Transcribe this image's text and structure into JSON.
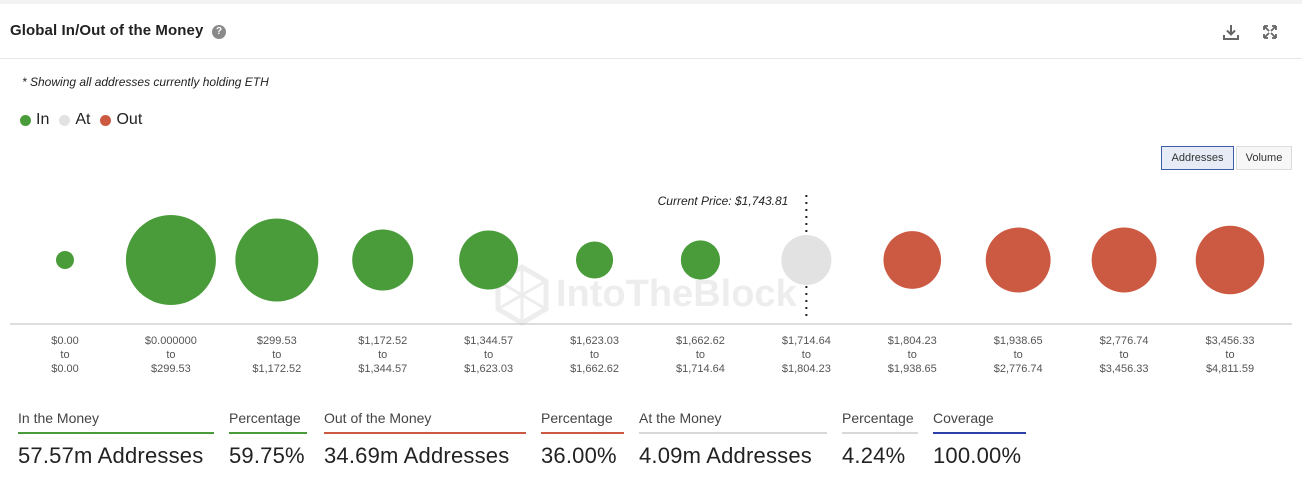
{
  "header": {
    "title": "Global In/Out of the Money",
    "help_glyph": "?",
    "icons": [
      "download-icon",
      "expand-icon"
    ]
  },
  "note": "* Showing all addresses currently holding ETH",
  "legend": [
    {
      "label": "In",
      "color": "#4a9c3a"
    },
    {
      "label": "At",
      "color": "#e2e2e2"
    },
    {
      "label": "Out",
      "color": "#cc5a43"
    }
  ],
  "toggles": {
    "addresses": "Addresses",
    "volume": "Volume"
  },
  "current_price_label": "Current Price: $1,743.81",
  "watermark": "IntoTheBlock",
  "chart_data": {
    "type": "bubble",
    "title": "Global In/Out of the Money",
    "current_price": 1743.81,
    "series": [
      {
        "name": "In",
        "color": "#4a9c3a"
      },
      {
        "name": "At",
        "color": "#e2e2e2"
      },
      {
        "name": "Out",
        "color": "#cc5a43"
      }
    ],
    "buckets": [
      {
        "from": "$0.00",
        "to": "$0.00",
        "status": "In",
        "size": 4
      },
      {
        "from": "$0.000000",
        "to": "$299.53",
        "status": "In",
        "size": 100
      },
      {
        "from": "$299.53",
        "to": "$1,172.52",
        "status": "In",
        "size": 85
      },
      {
        "from": "$1,172.52",
        "to": "$1,344.57",
        "status": "In",
        "size": 46
      },
      {
        "from": "$1,344.57",
        "to": "$1,623.03",
        "status": "In",
        "size": 43
      },
      {
        "from": "$1,623.03",
        "to": "$1,662.62",
        "status": "In",
        "size": 17
      },
      {
        "from": "$1,662.62",
        "to": "$1,714.64",
        "status": "In",
        "size": 19
      },
      {
        "from": "$1,714.64",
        "to": "$1,804.23",
        "status": "At",
        "size": 31
      },
      {
        "from": "$1,804.23",
        "to": "$1,938.65",
        "status": "Out",
        "size": 41
      },
      {
        "from": "$1,938.65",
        "to": "$2,776.74",
        "status": "Out",
        "size": 52
      },
      {
        "from": "$2,776.74",
        "to": "$3,456.33",
        "status": "Out",
        "size": 52
      },
      {
        "from": "$3,456.33",
        "to": "$4,811.59",
        "status": "Out",
        "size": 58
      }
    ],
    "range_connector": "to"
  },
  "stats": [
    {
      "label": "In the Money",
      "value": "57.57m Addresses",
      "color": "#4a9c3a"
    },
    {
      "label": "Percentage",
      "value": "59.75%",
      "color": "#4a9c3a"
    },
    {
      "label": "Out of the Money",
      "value": "34.69m Addresses",
      "color": "#cc5a43"
    },
    {
      "label": "Percentage",
      "value": "36.00%",
      "color": "#cc5a43"
    },
    {
      "label": "At the Money",
      "value": "4.09m Addresses",
      "color": "#d8d8d8"
    },
    {
      "label": "Percentage",
      "value": "4.24%",
      "color": "#d8d8d8"
    },
    {
      "label": "Coverage",
      "value": "100.00%",
      "color": "#2c3fa8"
    }
  ]
}
